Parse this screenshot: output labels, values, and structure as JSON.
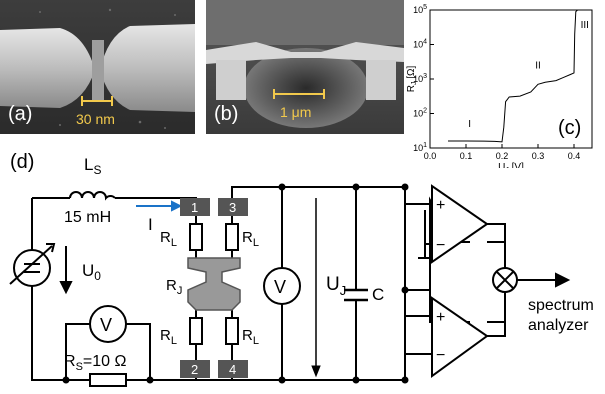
{
  "panels": {
    "a": {
      "label": "(a)",
      "scale_label": "30 nm",
      "scale_color": "#f2c94c"
    },
    "b": {
      "label": "(b)",
      "scale_label": "1 μm",
      "scale_color": "#f2c94c"
    },
    "c": {
      "label": "(c)"
    }
  },
  "chart_data": {
    "type": "line",
    "title": "",
    "xlabel": "U_J [V]",
    "ylabel": "R_J [Ω]",
    "xlim": [
      0.0,
      0.45
    ],
    "ylim": [
      10,
      100000
    ],
    "y_scale": "log",
    "x_ticks": [
      "0.0",
      "0.1",
      "0.2",
      "0.3",
      "0.4"
    ],
    "y_ticks": [
      "10^1",
      "10^2",
      "10^3",
      "10^4",
      "10^5"
    ],
    "grid": false,
    "annotations": [
      "I",
      "II",
      "III"
    ],
    "series": [
      {
        "x": [
          0.05,
          0.1,
          0.15,
          0.18,
          0.2,
          0.205,
          0.21,
          0.22,
          0.25,
          0.28,
          0.3,
          0.32,
          0.35,
          0.37,
          0.39,
          0.4,
          0.402,
          0.405,
          0.41
        ],
        "y": [
          16,
          16,
          15.8,
          15.5,
          15,
          40,
          220,
          300,
          320,
          420,
          700,
          800,
          900,
          1100,
          1350,
          1500,
          20000,
          90000,
          100000
        ]
      }
    ]
  },
  "circuit": {
    "panel_label": "(d)",
    "inductor_label": "L",
    "inductor_sub": "S",
    "inductor_value": "15 mH",
    "current_label": "I",
    "source_label": "U",
    "source_sub": "0",
    "voltmeter_symbol": "V",
    "shunt_label": "R",
    "shunt_sub": "S",
    "shunt_value": "=10 Ω",
    "lead_resistor": "R",
    "lead_resistor_sub": "L",
    "junction_label": "R",
    "junction_sub": "J",
    "pads": [
      "1",
      "3",
      "2",
      "4"
    ],
    "junction_voltage": "U",
    "junction_voltage_sub": "J",
    "capacitor_label": "C",
    "amp_plus": "+",
    "amp_minus": "−",
    "output_line1": "spectrum",
    "output_line2": "analyzer",
    "accent_color": "#1a73c8"
  }
}
